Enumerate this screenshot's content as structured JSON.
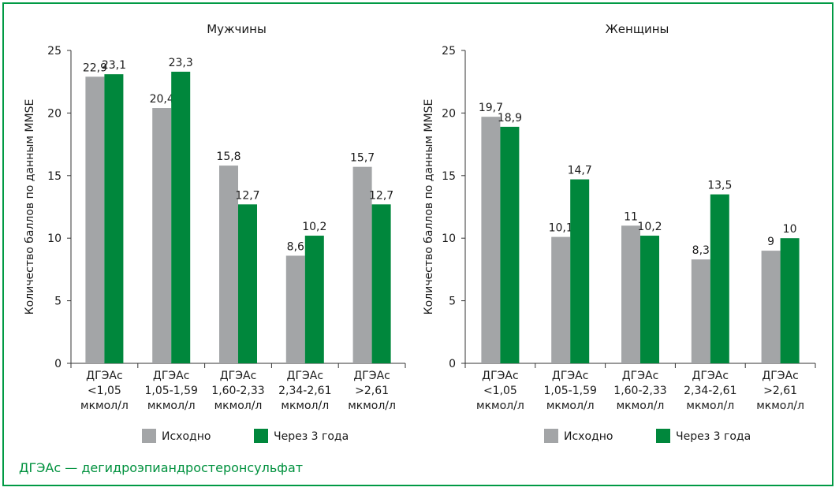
{
  "colors": {
    "baseline": "#a3a5a7",
    "after": "#00873c",
    "frame": "#009a44",
    "footnote": "#00913e"
  },
  "footnote": "ДГЭАс — дегидроэпиандростеронсульфат",
  "chart_data": [
    {
      "type": "bar",
      "title": "Мужчины",
      "ylabel": "Количество баллов по данным MMSE",
      "ylim": [
        0,
        25
      ],
      "yticks": [
        "0",
        "5",
        "10",
        "15",
        "20",
        "25"
      ],
      "categories": [
        [
          "ДГЭАс",
          "<1,05",
          "мкмол/л"
        ],
        [
          "ДГЭАс",
          "1,05-1,59",
          "мкмол/л"
        ],
        [
          "ДГЭАс",
          "1,60-2,33",
          "мкмол/л"
        ],
        [
          "ДГЭАс",
          "2,34-2,61",
          "мкмол/л"
        ],
        [
          "ДГЭАс",
          ">2,61",
          "мкмол/л"
        ]
      ],
      "series": [
        {
          "name": "Исходно",
          "color": "#a3a5a7",
          "values": [
            22.9,
            20.4,
            15.8,
            8.6,
            15.7
          ],
          "labels": [
            "22,9",
            "20,4",
            "15,8",
            "8,6",
            "15,7"
          ]
        },
        {
          "name": "Через 3 года",
          "color": "#00873c",
          "values": [
            23.1,
            23.3,
            12.7,
            10.2,
            12.7
          ],
          "labels": [
            "23,1",
            "23,3",
            "12,7",
            "10,2",
            "12,7"
          ]
        }
      ],
      "legend": "bottom",
      "grid": false
    },
    {
      "type": "bar",
      "title": "Женщины",
      "ylabel": "Количество баллов по данным MMSE",
      "ylim": [
        0,
        25
      ],
      "yticks": [
        "0",
        "5",
        "10",
        "15",
        "20",
        "25"
      ],
      "categories": [
        [
          "ДГЭАс",
          "<1,05",
          "мкмол/л"
        ],
        [
          "ДГЭАс",
          "1,05-1,59",
          "мкмол/л"
        ],
        [
          "ДГЭАс",
          "1,60-2,33",
          "мкмол/л"
        ],
        [
          "ДГЭАс",
          "2,34-2,61",
          "мкмол/л"
        ],
        [
          "ДГЭАс",
          ">2,61",
          "мкмол/л"
        ]
      ],
      "series": [
        {
          "name": "Исходно",
          "color": "#a3a5a7",
          "values": [
            19.7,
            10.1,
            11,
            8.3,
            9
          ],
          "labels": [
            "19,7",
            "10,1",
            "11",
            "8,3",
            "9"
          ]
        },
        {
          "name": "Через 3 года",
          "color": "#00873c",
          "values": [
            18.9,
            14.7,
            10.2,
            13.5,
            10
          ],
          "labels": [
            "18,9",
            "14,7",
            "10,2",
            "13,5",
            "10"
          ]
        }
      ],
      "legend": "bottom",
      "grid": false
    }
  ]
}
